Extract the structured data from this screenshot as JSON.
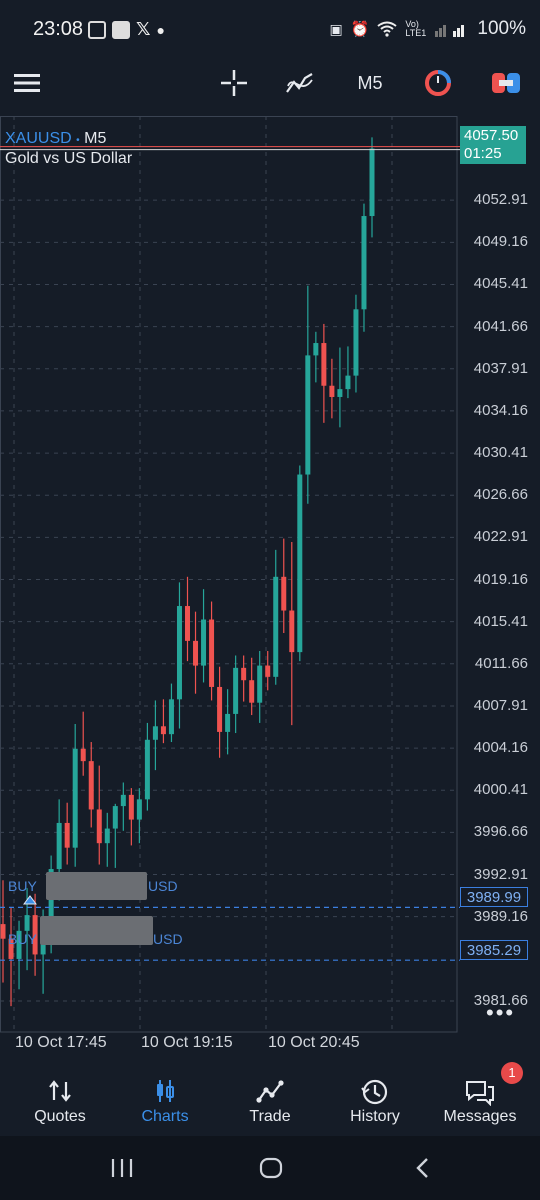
{
  "status_bar": {
    "time": "23:08",
    "battery": "100%",
    "network_label": "Vo) LTE1"
  },
  "toolbar": {
    "menu_icon": "hamburger-icon",
    "crosshair_icon": "crosshair-icon",
    "indicators_icon": "indicators-icon",
    "timeframe": "M5",
    "objects_icon": "objects-icon",
    "trade_icon": "one-click-trade-icon"
  },
  "chart": {
    "symbol": "XAUUSD",
    "separator": "•",
    "timeframe": "M5",
    "description": "Gold vs US Dollar",
    "current_price": "4057.50",
    "countdown": "01:25",
    "price_labels": [
      "4052.91",
      "4049.16",
      "4045.41",
      "4041.66",
      "4037.91",
      "4034.16",
      "4030.41",
      "4026.66",
      "4022.91",
      "4019.16",
      "4015.41",
      "4011.66",
      "4007.91",
      "4004.16",
      "4000.41",
      "3996.66",
      "3992.91",
      "3989.16",
      "3981.66"
    ],
    "time_labels": [
      "10 Oct 17:45",
      "10 Oct 19:15",
      "10 Oct 20:45"
    ],
    "positions": [
      {
        "prefix": "BUY",
        "suffix": "USD",
        "price": "3989.99"
      },
      {
        "prefix": "BUY",
        "suffix": "USD",
        "price": "3985.29"
      }
    ],
    "colors": {
      "up": "#26a69a",
      "down": "#ef5350",
      "grid": "#3a4352",
      "position_line": "#3b7fe0"
    }
  },
  "chart_data": {
    "type": "candlestick",
    "symbol": "XAUUSD",
    "timeframe": "M5",
    "y_range": [
      3978.9,
      4060.4
    ],
    "x_ticks": [
      "10 Oct 17:45",
      "10 Oct 19:15",
      "10 Oct 20:45"
    ],
    "ohlc": [
      [
        3988.5,
        3992.4,
        3983.3,
        3987.2
      ],
      [
        3987.2,
        3990.0,
        3981.2,
        3985.4
      ],
      [
        3985.4,
        3988.8,
        3982.7,
        3987.9
      ],
      [
        3987.9,
        3991.7,
        3984.4,
        3989.3
      ],
      [
        3989.3,
        3991.2,
        3983.9,
        3985.8
      ],
      [
        3985.8,
        3989.8,
        3982.3,
        3988.1
      ],
      [
        3988.1,
        3994.6,
        3985.9,
        3993.4
      ],
      [
        3993.4,
        3999.6,
        3990.6,
        3997.5
      ],
      [
        3997.5,
        3999.3,
        3993.8,
        3995.3
      ],
      [
        3995.3,
        4006.3,
        3993.6,
        4004.1
      ],
      [
        4004.1,
        4007.4,
        4001.7,
        4003.0
      ],
      [
        4003.0,
        4004.7,
        3997.1,
        3998.7
      ],
      [
        3998.7,
        4002.6,
        3993.8,
        3995.7
      ],
      [
        3995.7,
        3998.4,
        3993.6,
        3997.0
      ],
      [
        3997.0,
        3999.2,
        3993.5,
        3999.0
      ],
      [
        3999.0,
        4001.1,
        3996.8,
        4000.0
      ],
      [
        4000.0,
        4000.6,
        3995.5,
        3997.8
      ],
      [
        3997.8,
        4000.6,
        3995.7,
        3999.6
      ],
      [
        3999.6,
        4006.4,
        3998.6,
        4004.9
      ],
      [
        4004.9,
        4008.4,
        4002.2,
        4006.1
      ],
      [
        4006.1,
        4008.5,
        4004.6,
        4005.4
      ],
      [
        4005.4,
        4009.9,
        4004.7,
        4008.5
      ],
      [
        4008.5,
        4018.9,
        4005.9,
        4016.8
      ],
      [
        4016.8,
        4019.4,
        4011.9,
        4013.7
      ],
      [
        4013.7,
        4016.3,
        4009.0,
        4011.5
      ],
      [
        4011.5,
        4018.3,
        4010.0,
        4015.6
      ],
      [
        4015.6,
        4017.2,
        4008.4,
        4009.6
      ],
      [
        4009.6,
        4011.4,
        4003.3,
        4005.6
      ],
      [
        4005.6,
        4009.4,
        4003.6,
        4007.2
      ],
      [
        4007.2,
        4012.4,
        4005.5,
        4011.3
      ],
      [
        4011.3,
        4012.4,
        4008.3,
        4010.2
      ],
      [
        4010.2,
        4012.2,
        4007.1,
        4008.2
      ],
      [
        4008.2,
        4012.8,
        4006.4,
        4011.5
      ],
      [
        4011.5,
        4012.8,
        4009.3,
        4010.5
      ],
      [
        4010.5,
        4021.8,
        4009.8,
        4019.4
      ],
      [
        4019.4,
        4022.8,
        4014.4,
        4016.4
      ],
      [
        4016.4,
        4022.5,
        4006.2,
        4012.7
      ],
      [
        4012.7,
        4029.3,
        4011.9,
        4028.5
      ],
      [
        4028.5,
        4045.3,
        4025.9,
        4039.1
      ],
      [
        4039.1,
        4041.2,
        4036.7,
        4040.2
      ],
      [
        4040.2,
        4041.9,
        4033.1,
        4036.4
      ],
      [
        4036.4,
        4038.8,
        4033.5,
        4035.4
      ],
      [
        4035.4,
        4039.8,
        4032.7,
        4036.1
      ],
      [
        4036.1,
        4039.9,
        4035.3,
        4037.3
      ],
      [
        4037.3,
        4044.5,
        4035.8,
        4043.2
      ],
      [
        4043.2,
        4052.6,
        4041.2,
        4051.5
      ],
      [
        4051.5,
        4058.5,
        4049.6,
        4057.5
      ]
    ],
    "position_lines": [
      3989.99,
      3985.29
    ],
    "current_price": 4057.5
  },
  "nav": {
    "items": [
      {
        "label": "Quotes",
        "icon": "quotes-icon"
      },
      {
        "label": "Charts",
        "icon": "charts-icon"
      },
      {
        "label": "Trade",
        "icon": "trade-icon"
      },
      {
        "label": "History",
        "icon": "history-icon"
      },
      {
        "label": "Messages",
        "icon": "messages-icon",
        "badge": "1"
      }
    ],
    "active": "Charts"
  },
  "system_nav": {
    "icons": [
      "recents-icon",
      "home-icon",
      "back-icon"
    ]
  }
}
